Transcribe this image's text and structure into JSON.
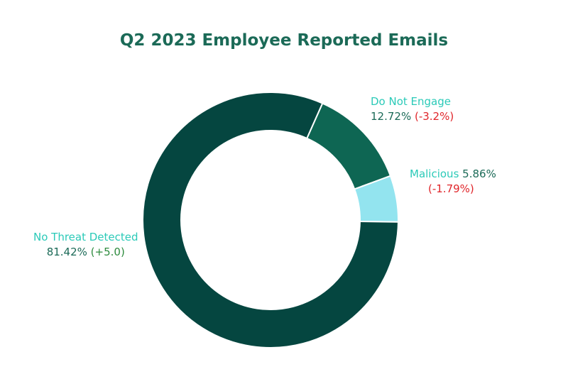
{
  "chart_data": {
    "type": "pie",
    "donut": true,
    "title": "Q2 2023 Employee Reported Emails",
    "slices": [
      {
        "name": "Do Not Engage",
        "value": 12.72,
        "value_label": "12.72%",
        "change": -3.2,
        "change_label": "(-3.2%)",
        "color": "#0e6653",
        "label_color": "#2bcab8"
      },
      {
        "name": "Malicious",
        "value": 5.86,
        "value_label": "5.86%",
        "change": -1.79,
        "change_label": "(-1.79%)",
        "color": "#93e4ef",
        "label_color": "#2bcab8"
      },
      {
        "name": "No Threat Detected",
        "value": 81.42,
        "value_label": "81.42%",
        "change": 5.0,
        "change_label": "(+5.0)",
        "color": "#054640",
        "label_color": "#2bcab8"
      }
    ],
    "colors": {
      "title": "#1b6a57",
      "value_text": "#1b6a57",
      "negative_change": "#e0262b",
      "positive_change": "#2e8b3e",
      "slice_border": "#ffffff"
    },
    "legend": "none"
  }
}
